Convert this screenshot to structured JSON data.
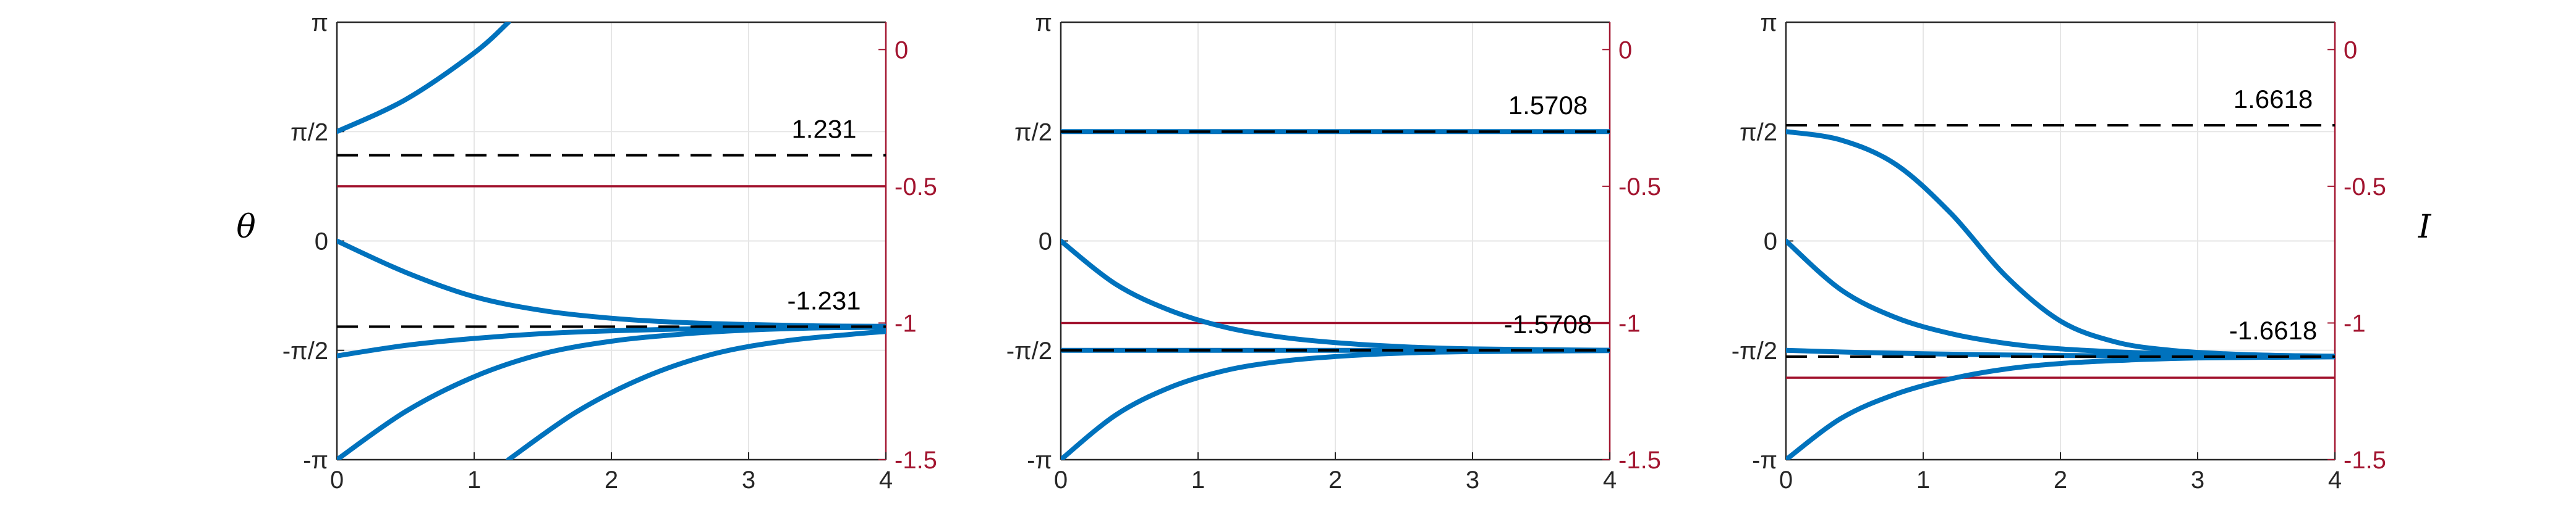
{
  "ylabel_left": "θ",
  "ylabel_right": "I",
  "colors": {
    "curve": "#0072bd",
    "dashed": "#000000",
    "right_axis": "#a2142f",
    "grid": "#e6e6e6",
    "axis": "#262626"
  },
  "chart_data": [
    {
      "type": "line",
      "xlim": [
        0,
        4
      ],
      "ylim": [
        -3.14159,
        3.14159
      ],
      "right_ylim": [
        -1.5,
        0.1
      ],
      "x_ticks": [
        "0",
        "1",
        "2",
        "3",
        "4"
      ],
      "y_ticks": [
        "-π",
        "-π/2",
        "0",
        "π/2",
        "π"
      ],
      "right_ticks": [
        "-1.5",
        "-1",
        "-0.5",
        "0"
      ],
      "grid": true,
      "ylabel": "θ",
      "ylabel_right": "",
      "fixed_points": [
        1.231,
        -1.231
      ],
      "fixed_point_labels": [
        "1.231",
        "-1.231"
      ],
      "current": -0.5,
      "series": [
        {
          "x": [
            0,
            0.5,
            1,
            1.25
          ],
          "values": [
            1.5708,
            2.03,
            2.7,
            3.1416
          ]
        },
        {
          "x": [
            0,
            0.5,
            1,
            1.5,
            2,
            2.5,
            3,
            3.5,
            4
          ],
          "values": [
            0,
            -0.45,
            -0.8,
            -1.0,
            -1.11,
            -1.17,
            -1.2,
            -1.22,
            -1.225
          ]
        },
        {
          "x": [
            0,
            0.5,
            1,
            1.5,
            2,
            2.5,
            3,
            3.5,
            4
          ],
          "values": [
            -1.65,
            -1.5,
            -1.4,
            -1.33,
            -1.29,
            -1.265,
            -1.25,
            -1.24,
            -1.235
          ]
        },
        {
          "x": [
            0,
            0.5,
            1,
            1.5,
            2,
            2.5,
            3,
            3.5,
            4
          ],
          "values": [
            -3.1416,
            -2.45,
            -1.95,
            -1.62,
            -1.44,
            -1.34,
            -1.28,
            -1.25,
            -1.24
          ]
        },
        {
          "x": [
            1.25,
            1.75,
            2.25,
            2.75,
            3.25,
            3.75,
            4
          ],
          "values": [
            -3.1416,
            -2.45,
            -1.95,
            -1.62,
            -1.44,
            -1.34,
            -1.3
          ]
        }
      ]
    },
    {
      "type": "line",
      "xlim": [
        0,
        4
      ],
      "ylim": [
        -3.14159,
        3.14159
      ],
      "right_ylim": [
        -1.5,
        0.1
      ],
      "x_ticks": [
        "0",
        "1",
        "2",
        "3",
        "4"
      ],
      "y_ticks": [
        "-π",
        "-π/2",
        "0",
        "π/2",
        "π"
      ],
      "right_ticks": [
        "-1.5",
        "-1",
        "-0.5",
        "0"
      ],
      "grid": true,
      "ylabel": "",
      "ylabel_right": "",
      "fixed_points": [
        1.5708,
        -1.5708
      ],
      "fixed_point_labels": [
        "1.5708",
        "-1.5708"
      ],
      "current": -1.0,
      "series": [
        {
          "x": [
            0,
            4
          ],
          "values": [
            1.5708,
            1.5708
          ]
        },
        {
          "x": [
            0,
            0.4,
            0.8,
            1.2,
            1.6,
            2,
            2.5,
            3,
            4
          ],
          "values": [
            0,
            -0.62,
            -1.0,
            -1.24,
            -1.38,
            -1.46,
            -1.52,
            -1.55,
            -1.57
          ]
        },
        {
          "x": [
            0,
            0.4,
            0.8,
            1.2,
            1.6,
            2,
            2.5,
            3,
            4
          ],
          "values": [
            -3.1416,
            -2.5,
            -2.1,
            -1.86,
            -1.73,
            -1.66,
            -1.61,
            -1.59,
            -1.575
          ]
        },
        {
          "x": [
            0,
            4
          ],
          "values": [
            -1.5708,
            -1.5708
          ]
        }
      ]
    },
    {
      "type": "line",
      "xlim": [
        0,
        4
      ],
      "ylim": [
        -3.14159,
        3.14159
      ],
      "right_ylim": [
        -1.5,
        0.1
      ],
      "x_ticks": [
        "0",
        "1",
        "2",
        "3",
        "4"
      ],
      "y_ticks": [
        "-π",
        "-π/2",
        "0",
        "π/2",
        "π"
      ],
      "right_ticks": [
        "-1.5",
        "-1",
        "-0.5",
        "0"
      ],
      "grid": true,
      "ylabel": "",
      "ylabel_right": "I",
      "fixed_points": [
        1.6618,
        -1.6618
      ],
      "fixed_point_labels": [
        "1.6618",
        "-1.6618"
      ],
      "current": -1.2,
      "series": [
        {
          "x": [
            0,
            0.4,
            0.8,
            1.2,
            1.6,
            2,
            2.4,
            2.8,
            3.2,
            3.6,
            4
          ],
          "values": [
            1.571,
            1.45,
            1.1,
            0.4,
            -0.5,
            -1.15,
            -1.45,
            -1.57,
            -1.62,
            -1.645,
            -1.655
          ]
        },
        {
          "x": [
            0,
            0.4,
            0.8,
            1.2,
            1.6,
            2,
            2.5,
            3,
            4
          ],
          "values": [
            0,
            -0.7,
            -1.1,
            -1.33,
            -1.47,
            -1.55,
            -1.6,
            -1.63,
            -1.655
          ]
        },
        {
          "x": [
            0,
            0.5,
            1,
            1.5,
            2,
            2.5,
            3,
            3.5,
            4
          ],
          "values": [
            -1.571,
            -1.6,
            -1.62,
            -1.635,
            -1.645,
            -1.65,
            -1.655,
            -1.658,
            -1.66
          ]
        },
        {
          "x": [
            0,
            0.4,
            0.8,
            1.2,
            1.6,
            2,
            2.5,
            3,
            4
          ],
          "values": [
            -3.1416,
            -2.55,
            -2.2,
            -1.98,
            -1.84,
            -1.76,
            -1.71,
            -1.68,
            -1.665
          ]
        }
      ]
    }
  ]
}
